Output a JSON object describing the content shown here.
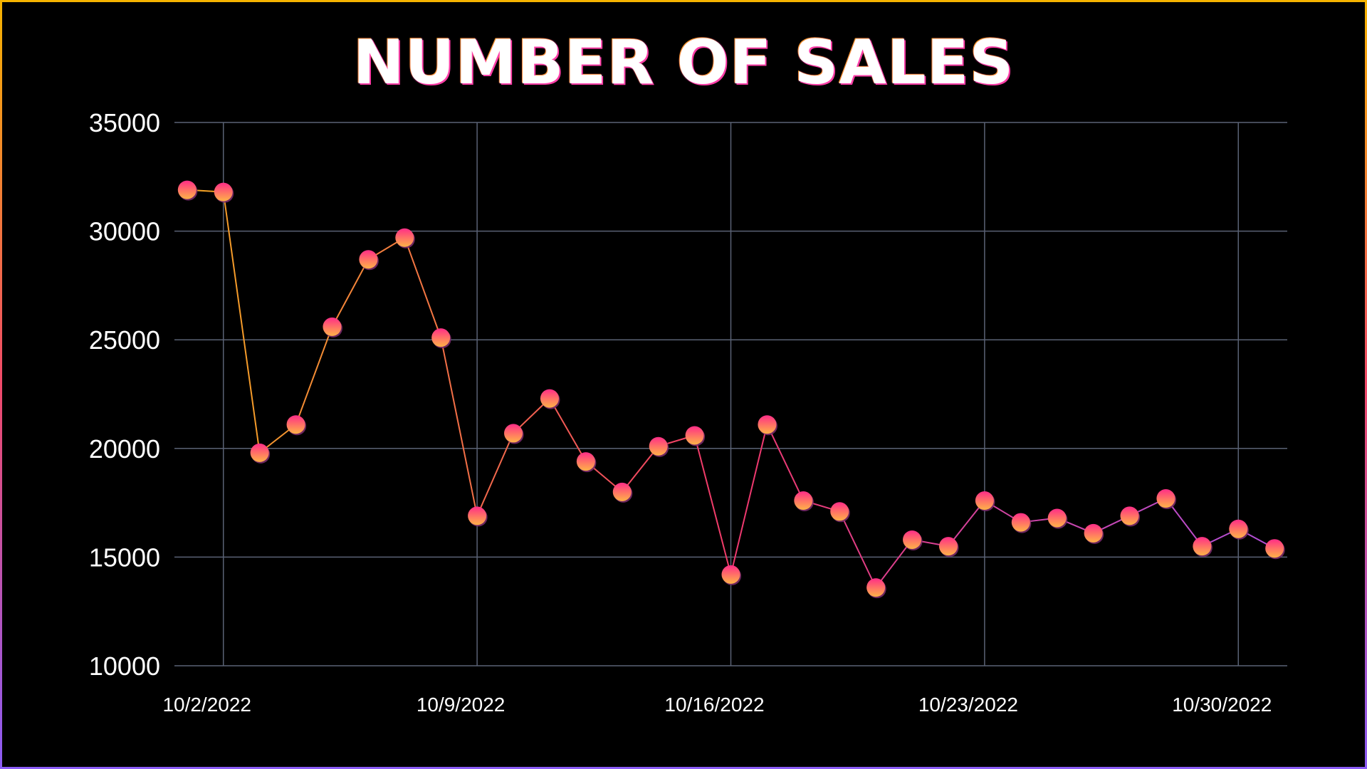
{
  "chart_data": {
    "type": "line",
    "title": "NUMBER OF SALES",
    "xlabel": "",
    "ylabel": "",
    "x": [
      "2022-10-01",
      "2022-10-02",
      "2022-10-03",
      "2022-10-04",
      "2022-10-05",
      "2022-10-06",
      "2022-10-07",
      "2022-10-08",
      "2022-10-09",
      "2022-10-10",
      "2022-10-11",
      "2022-10-12",
      "2022-10-13",
      "2022-10-14",
      "2022-10-15",
      "2022-10-16",
      "2022-10-17",
      "2022-10-18",
      "2022-10-19",
      "2022-10-20",
      "2022-10-21",
      "2022-10-22",
      "2022-10-23",
      "2022-10-24",
      "2022-10-25",
      "2022-10-26",
      "2022-10-27",
      "2022-10-28",
      "2022-10-29",
      "2022-10-30",
      "2022-10-31"
    ],
    "values": [
      31900,
      31800,
      19800,
      21100,
      25600,
      28700,
      29700,
      25100,
      16900,
      20700,
      22300,
      19400,
      18000,
      20100,
      20600,
      14200,
      21100,
      17600,
      17100,
      13600,
      15800,
      15500,
      17600,
      16600,
      16800,
      16100,
      16900,
      17700,
      15500,
      16300,
      15400
    ],
    "x_ticks": [
      "10/2/2022",
      "10/9/2022",
      "10/16/2022",
      "10/23/2022",
      "10/30/2022"
    ],
    "y_ticks": [
      "35000",
      "30000",
      "25000",
      "20000",
      "15000",
      "10000"
    ],
    "ylim": [
      10000,
      35000
    ],
    "grid": true,
    "colors": {
      "line_start": "#f5a623",
      "line_mid": "#f0386b",
      "line_end": "#b14fd8",
      "marker_top": "#ff2d87",
      "marker_bottom": "#ffb347",
      "grid": "#5a6275"
    }
  }
}
